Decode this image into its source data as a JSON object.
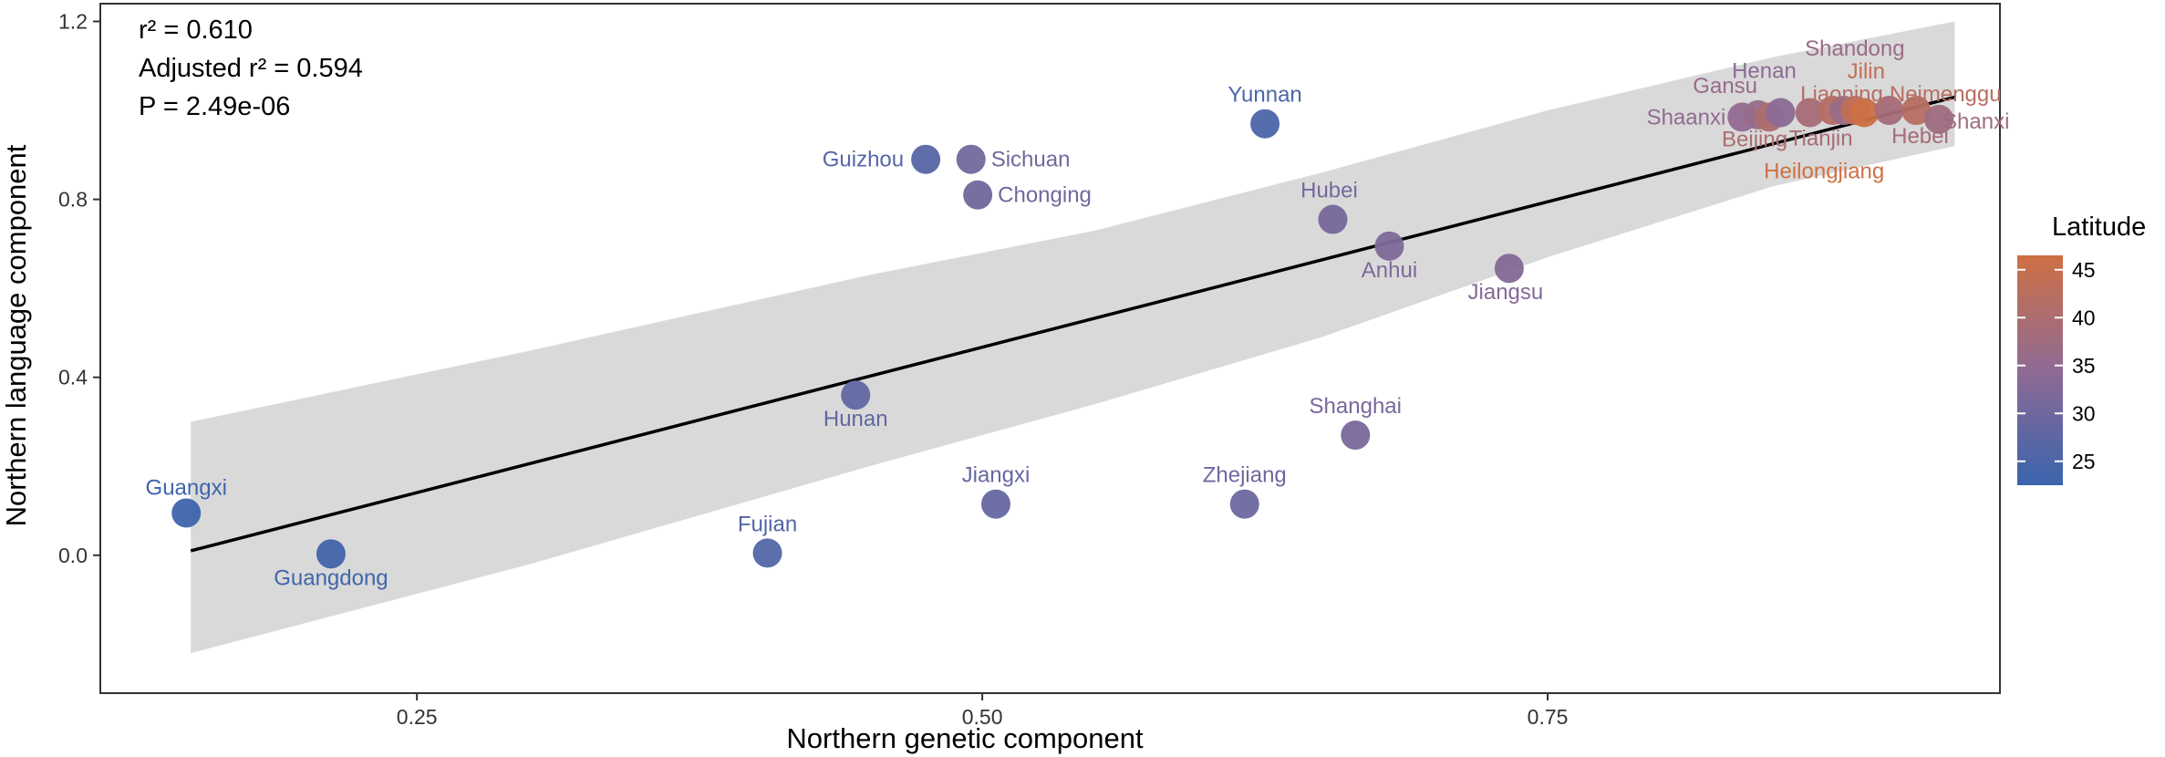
{
  "chart_data": {
    "type": "scatter",
    "xlabel": "Northern genetic component",
    "ylabel": "Northern language component",
    "xlim": [
      0.11,
      0.95
    ],
    "ylim": [
      -0.31,
      1.24
    ],
    "x_ticks": [
      0.25,
      0.5,
      0.75
    ],
    "x_tick_labels": [
      "0.25",
      "0.50",
      "0.75"
    ],
    "y_ticks": [
      0.0,
      0.4,
      0.8,
      1.2
    ],
    "y_tick_labels": [
      "0.0",
      "0.4",
      "0.8",
      "1.2"
    ],
    "grid": false,
    "stats": [
      "r² = 0.610",
      "Adjusted r² = 0.594",
      "P = 2.49e-06"
    ],
    "regression": {
      "x_start": 0.15,
      "y_start": 0.01,
      "x_end": 0.93,
      "y_end": 1.03,
      "ci_color": "#d9d9d9",
      "line_color": "#000000"
    },
    "ci_band": {
      "upper": [
        [
          0.15,
          0.3
        ],
        [
          0.3,
          0.46
        ],
        [
          0.45,
          0.63
        ],
        [
          0.55,
          0.73
        ],
        [
          0.65,
          0.86
        ],
        [
          0.75,
          1.0
        ],
        [
          0.85,
          1.12
        ],
        [
          0.93,
          1.2
        ]
      ],
      "lower": [
        [
          0.15,
          -0.22
        ],
        [
          0.3,
          -0.02
        ],
        [
          0.45,
          0.2
        ],
        [
          0.55,
          0.34
        ],
        [
          0.65,
          0.49
        ],
        [
          0.75,
          0.67
        ],
        [
          0.85,
          0.83
        ],
        [
          0.93,
          0.92
        ]
      ]
    },
    "legend": {
      "title": "Latitude",
      "position": "right",
      "ticks": [
        25,
        30,
        35,
        40,
        45
      ],
      "min": 22.5,
      "max": 46.5,
      "color_low": "#3a64ad",
      "color_mid": "#8f6a94",
      "color_high": "#cf7044"
    },
    "points": [
      {
        "label": "Guangxi",
        "x": 0.148,
        "y": 0.095,
        "lat": 23
      },
      {
        "label": "Guangdong",
        "x": 0.212,
        "y": 0.003,
        "lat": 23.5
      },
      {
        "label": "Fujian",
        "x": 0.405,
        "y": 0.005,
        "lat": 26
      },
      {
        "label": "Hunan",
        "x": 0.444,
        "y": 0.36,
        "lat": 28
      },
      {
        "label": "Jiangxi",
        "x": 0.506,
        "y": 0.115,
        "lat": 28.5
      },
      {
        "label": "Guizhou",
        "x": 0.475,
        "y": 0.89,
        "lat": 26.5
      },
      {
        "label": "Sichuan",
        "x": 0.495,
        "y": 0.89,
        "lat": 30.5
      },
      {
        "label": "Chonging",
        "x": 0.498,
        "y": 0.81,
        "lat": 30
      },
      {
        "label": "Yunnan",
        "x": 0.625,
        "y": 0.97,
        "lat": 25
      },
      {
        "label": "Zhejiang",
        "x": 0.616,
        "y": 0.115,
        "lat": 29.5
      },
      {
        "label": "Shanghai",
        "x": 0.665,
        "y": 0.27,
        "lat": 31.2
      },
      {
        "label": "Hubei",
        "x": 0.655,
        "y": 0.755,
        "lat": 31
      },
      {
        "label": "Anhui",
        "x": 0.68,
        "y": 0.695,
        "lat": 32
      },
      {
        "label": "Jiangsu",
        "x": 0.733,
        "y": 0.645,
        "lat": 33
      },
      {
        "label": "Shaanxi",
        "x": 0.836,
        "y": 0.985,
        "lat": 35
      },
      {
        "label": "Gansu",
        "x": 0.843,
        "y": 0.99,
        "lat": 36
      },
      {
        "label": "Beijing",
        "x": 0.848,
        "y": 0.985,
        "lat": 40
      },
      {
        "label": "Henan",
        "x": 0.853,
        "y": 0.995,
        "lat": 34
      },
      {
        "label": "Tianjin",
        "x": 0.866,
        "y": 0.995,
        "lat": 39
      },
      {
        "label": "Liaoning",
        "x": 0.876,
        "y": 1.0,
        "lat": 41.5
      },
      {
        "label": "Shandong",
        "x": 0.881,
        "y": 1.0,
        "lat": 36.5
      },
      {
        "label": "Jilin",
        "x": 0.886,
        "y": 1.0,
        "lat": 43.5
      },
      {
        "label": "Heilongjiang",
        "x": 0.89,
        "y": 0.995,
        "lat": 47
      },
      {
        "label": "Hebei",
        "x": 0.901,
        "y": 1.0,
        "lat": 38.5
      },
      {
        "label": "Neimenggu",
        "x": 0.913,
        "y": 1.0,
        "lat": 42
      },
      {
        "label": "Shanxi",
        "x": 0.923,
        "y": 0.98,
        "lat": 37.5
      }
    ]
  }
}
